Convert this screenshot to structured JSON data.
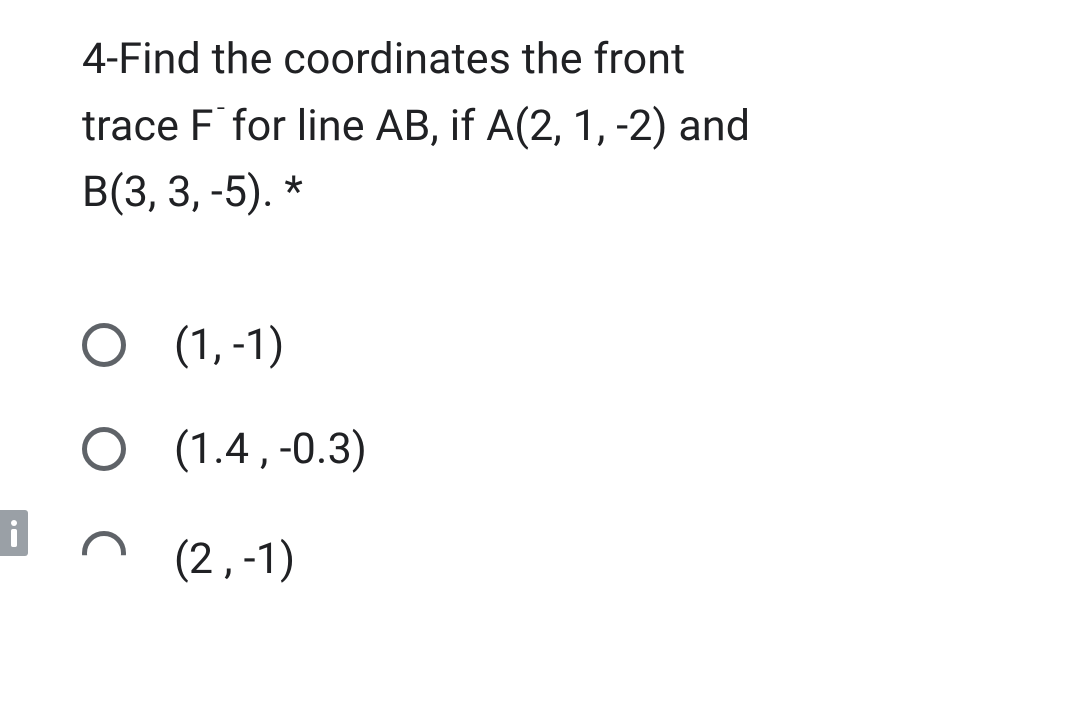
{
  "question": {
    "line1": "4-Find the coordinates the front",
    "line2_prefix": "trace F",
    "line2_sup": " ̄",
    "line2_rest": " for line AB, if A(2, 1, -2) and",
    "line3": "B(3, 3, -5). ",
    "required_mark": "*"
  },
  "options": [
    {
      "label": "(1, -1)"
    },
    {
      "label": "(1.4 , -0.3)"
    },
    {
      "label": "(2 , -1)"
    }
  ],
  "colors": {
    "text": "#202124",
    "radio_border": "#5f6368",
    "chip_bg": "#9aa0a6",
    "chip_fg": "#ffffff",
    "background": "#ffffff"
  }
}
